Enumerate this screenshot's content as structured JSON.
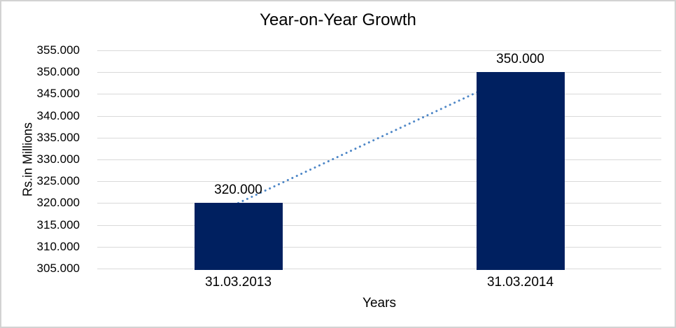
{
  "chart_data": {
    "type": "bar",
    "title": "Year-on-Year Growth",
    "xlabel": "Years",
    "ylabel": "Rs.in Millions",
    "categories": [
      "31.03.2013",
      "31.03.2014"
    ],
    "values": [
      320,
      350
    ],
    "value_labels": [
      "320.000",
      "350.000"
    ],
    "ylim": [
      305,
      355
    ],
    "ytick_step": 5,
    "ytick_labels": [
      "355.000",
      "350.000",
      "345.000",
      "340.000",
      "335.000",
      "330.000",
      "325.000",
      "320.000",
      "315.000",
      "310.000",
      "305.000"
    ],
    "grid": true,
    "legend": false,
    "trendline": {
      "style": "dotted",
      "from_value": 320,
      "to_value": 350
    }
  },
  "colors": {
    "bar": "#002060",
    "trendline": "#4E87C7",
    "gridline": "#D9D9D9",
    "text": "#000000",
    "border": "#D2D2D2",
    "background": "#FFFFFF"
  }
}
